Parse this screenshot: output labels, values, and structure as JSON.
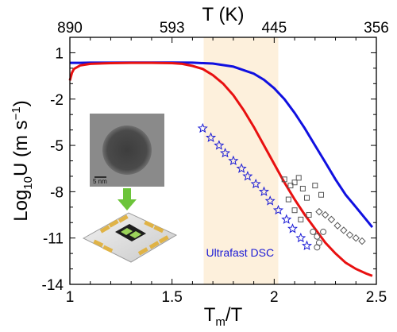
{
  "chart_data": {
    "type": "line",
    "xlabel_main": "T",
    "xlabel_sub": "m",
    "xlabel_suffix": "/T",
    "ylabel_base": "Log",
    "ylabel_sub": "10",
    "ylabel_mid": "U (m s",
    "ylabel_sup": "−1",
    "ylabel_end": ")",
    "top_axis_label": "T (K)",
    "xlim": [
      1.0,
      2.5
    ],
    "ylim": [
      -14,
      2
    ],
    "x_ticks": [
      {
        "value": 1.0,
        "label": "1"
      },
      {
        "value": 1.5,
        "label": "1.5"
      },
      {
        "value": 2.0,
        "label": "2"
      },
      {
        "value": 2.5,
        "label": "2.5"
      }
    ],
    "y_ticks": [
      {
        "value": 1,
        "label": "1"
      },
      {
        "value": -2,
        "label": "-2"
      },
      {
        "value": -5,
        "label": "-5"
      },
      {
        "value": -8,
        "label": "-8"
      },
      {
        "value": -11,
        "label": "-11"
      },
      {
        "value": -14,
        "label": "-14"
      }
    ],
    "top_ticks": [
      {
        "value": 1.0,
        "label": "890"
      },
      {
        "value": 1.5,
        "label": "593"
      },
      {
        "value": 2.0,
        "label": "445"
      },
      {
        "value": 2.5,
        "label": "356"
      }
    ],
    "band": {
      "x0": 1.655,
      "x1": 2.02,
      "color": "#fdf0dc",
      "label": "Ultrafast DSC"
    },
    "series": [
      {
        "color": "#1010e0",
        "style": "line",
        "points": [
          [
            1.0,
            0.35
          ],
          [
            1.05,
            0.35
          ],
          [
            1.1,
            0.36
          ],
          [
            1.2,
            0.36
          ],
          [
            1.3,
            0.37
          ],
          [
            1.4,
            0.37
          ],
          [
            1.5,
            0.37
          ],
          [
            1.6,
            0.36
          ],
          [
            1.7,
            0.3
          ],
          [
            1.8,
            0.1
          ],
          [
            1.9,
            -0.35
          ],
          [
            1.95,
            -0.75
          ],
          [
            2.0,
            -1.3
          ],
          [
            2.05,
            -2.0
          ],
          [
            2.1,
            -2.9
          ],
          [
            2.15,
            -3.9
          ],
          [
            2.2,
            -5.0
          ],
          [
            2.25,
            -6.1
          ],
          [
            2.3,
            -7.2
          ],
          [
            2.35,
            -8.2
          ],
          [
            2.4,
            -9.0
          ],
          [
            2.45,
            -9.8
          ],
          [
            2.48,
            -10.3
          ]
        ]
      },
      {
        "color": "#e81010",
        "style": "line",
        "points": [
          [
            1.0,
            -0.8
          ],
          [
            1.01,
            -0.3
          ],
          [
            1.02,
            -0.05
          ],
          [
            1.05,
            0.18
          ],
          [
            1.1,
            0.28
          ],
          [
            1.2,
            0.33
          ],
          [
            1.3,
            0.35
          ],
          [
            1.4,
            0.35
          ],
          [
            1.5,
            0.33
          ],
          [
            1.55,
            0.28
          ],
          [
            1.6,
            0.15
          ],
          [
            1.65,
            -0.05
          ],
          [
            1.7,
            -0.45
          ],
          [
            1.75,
            -1.0
          ],
          [
            1.8,
            -1.75
          ],
          [
            1.85,
            -2.7
          ],
          [
            1.9,
            -3.8
          ],
          [
            1.95,
            -5.0
          ],
          [
            2.0,
            -6.2
          ],
          [
            2.05,
            -7.4
          ],
          [
            2.1,
            -8.5
          ],
          [
            2.15,
            -9.5
          ],
          [
            2.2,
            -10.4
          ],
          [
            2.25,
            -11.3
          ],
          [
            2.3,
            -12.0
          ],
          [
            2.35,
            -12.6
          ],
          [
            2.4,
            -13.0
          ],
          [
            2.45,
            -13.3
          ],
          [
            2.48,
            -13.45
          ]
        ]
      },
      {
        "color": "#1a1ad6",
        "style": "star",
        "points": [
          [
            1.65,
            -3.9
          ],
          [
            1.69,
            -4.5
          ],
          [
            1.73,
            -5.0
          ],
          [
            1.76,
            -5.5
          ],
          [
            1.8,
            -6.0
          ],
          [
            1.84,
            -6.5
          ],
          [
            1.87,
            -7.0
          ],
          [
            1.91,
            -7.5
          ],
          [
            1.95,
            -8.0
          ],
          [
            1.98,
            -8.6
          ],
          [
            2.02,
            -9.2
          ],
          [
            2.06,
            -9.8
          ],
          [
            2.09,
            -10.4
          ],
          [
            2.13,
            -11.0
          ],
          [
            2.16,
            -11.5
          ]
        ]
      },
      {
        "color": "#555555",
        "style": "square",
        "points": [
          [
            2.05,
            -7.2
          ],
          [
            2.08,
            -7.6
          ],
          [
            2.1,
            -7.4
          ],
          [
            2.12,
            -7.1
          ],
          [
            2.14,
            -7.8
          ],
          [
            2.16,
            -8.4
          ],
          [
            2.07,
            -8.5
          ],
          [
            2.1,
            -9.2
          ],
          [
            2.13,
            -9.8
          ],
          [
            2.17,
            -9.5
          ],
          [
            2.2,
            -7.6
          ],
          [
            2.23,
            -8.2
          ]
        ]
      },
      {
        "color": "#555555",
        "style": "circle",
        "points": [
          [
            2.19,
            -10.6
          ],
          [
            2.21,
            -10.9
          ],
          [
            2.22,
            -11.3
          ],
          [
            2.24,
            -10.6
          ],
          [
            2.21,
            -11.6
          ]
        ]
      },
      {
        "color": "#555555",
        "style": "diamond",
        "points": [
          [
            2.22,
            -9.3
          ],
          [
            2.25,
            -9.5
          ],
          [
            2.28,
            -9.8
          ],
          [
            2.31,
            -10.2
          ],
          [
            2.34,
            -10.5
          ],
          [
            2.37,
            -10.8
          ],
          [
            2.4,
            -11.0
          ],
          [
            2.43,
            -11.2
          ]
        ]
      }
    ],
    "inset": {
      "scale_label": "5 nm"
    }
  }
}
